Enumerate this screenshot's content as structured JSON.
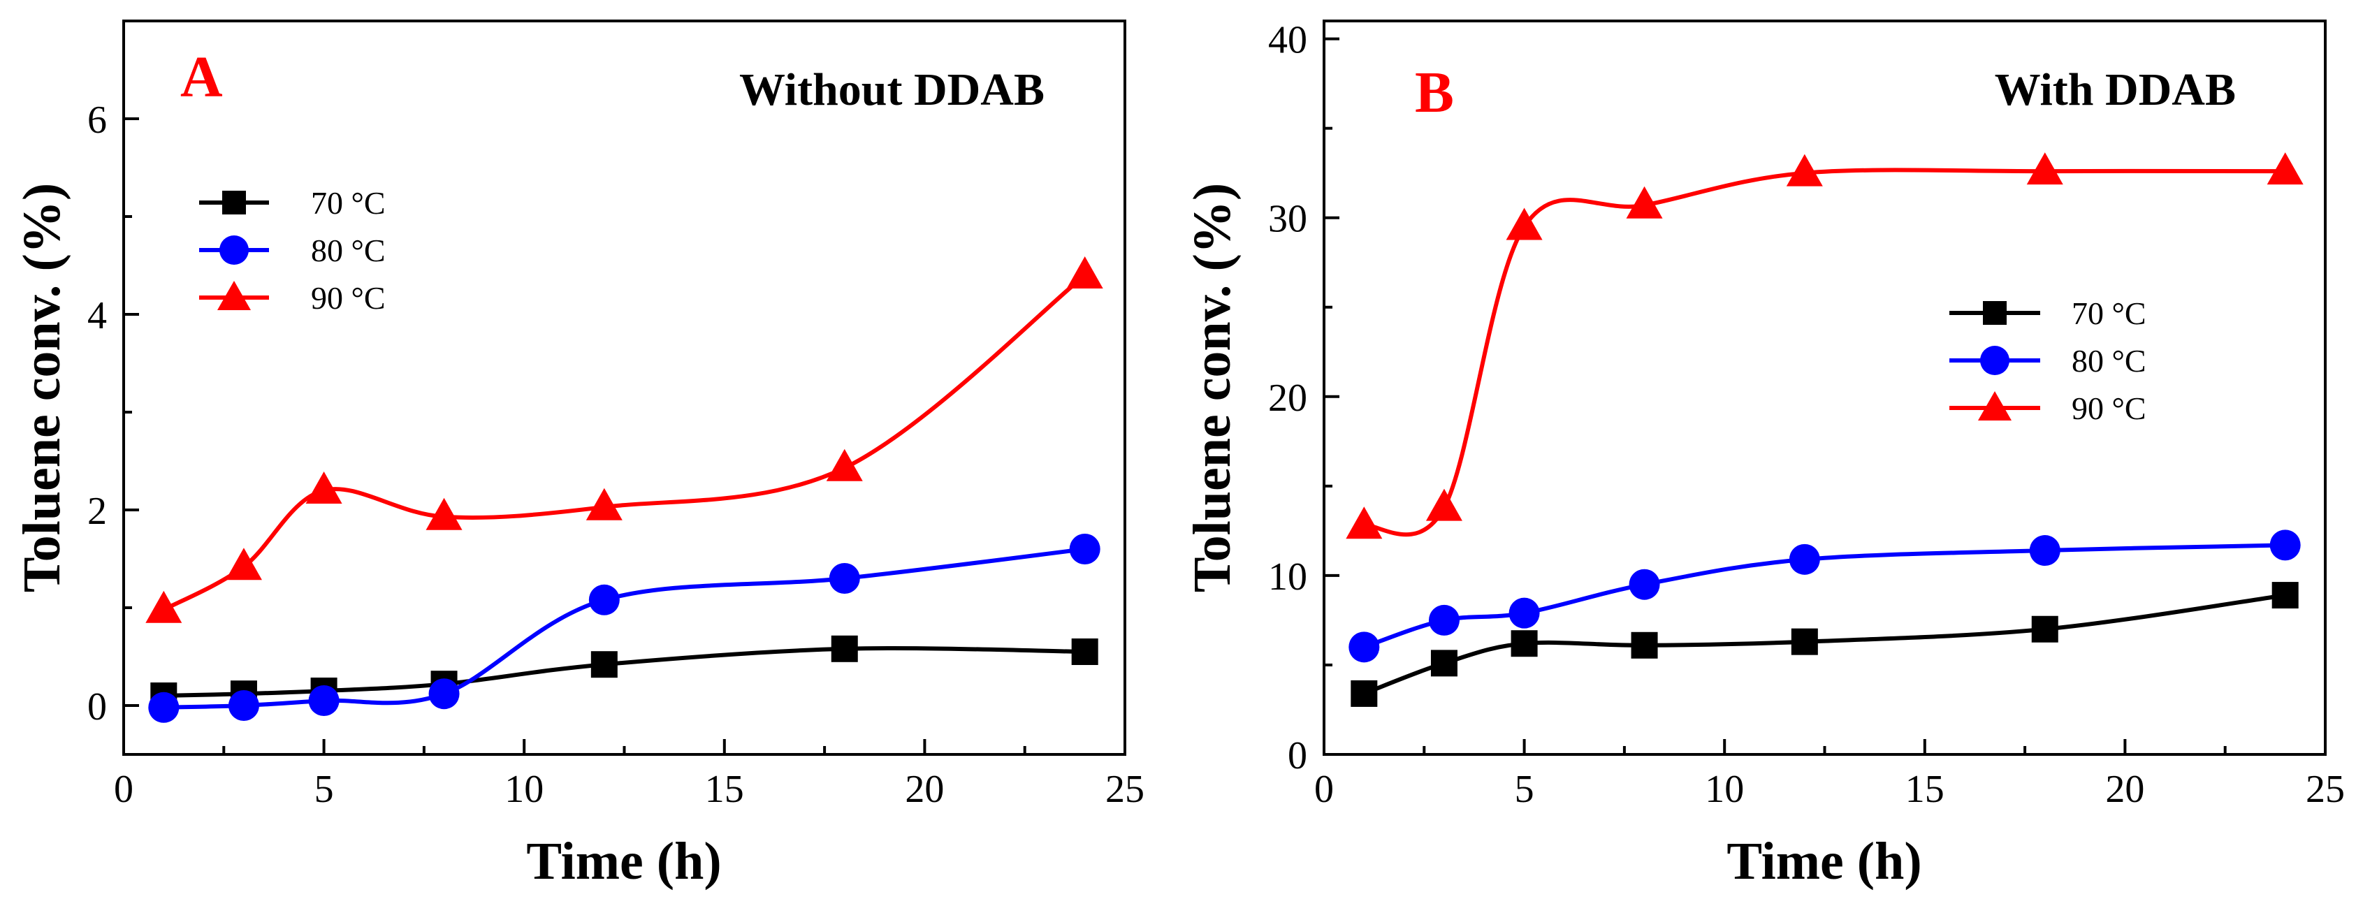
{
  "chart_data": [
    {
      "type": "line",
      "panel": "A",
      "title": "Without DDAB",
      "xlabel": "Time (h)",
      "ylabel": "Toluene conv. (%)",
      "xlim": [
        0,
        25
      ],
      "ylim": [
        -0.5,
        7
      ],
      "xticks": [
        0,
        5,
        10,
        15,
        20,
        25
      ],
      "yticks": [
        0,
        2,
        4,
        6
      ],
      "legend_position": "upper-left",
      "x": [
        1,
        3,
        5,
        8,
        12,
        18,
        24
      ],
      "series": [
        {
          "name": "70 °C",
          "color": "#000000",
          "marker": "square",
          "values": [
            0.1,
            0.12,
            0.15,
            0.22,
            0.42,
            0.58,
            0.55
          ]
        },
        {
          "name": "80 °C",
          "color": "#0000ff",
          "marker": "circle",
          "values": [
            -0.02,
            0.0,
            0.05,
            0.12,
            1.08,
            1.3,
            1.6
          ]
        },
        {
          "name": "90 °C",
          "color": "#ff0000",
          "marker": "triangle",
          "values": [
            0.98,
            1.42,
            2.2,
            1.93,
            2.03,
            2.43,
            4.4
          ]
        }
      ]
    },
    {
      "type": "line",
      "panel": "B",
      "title": "With DDAB",
      "xlabel": "Time (h)",
      "ylabel": "Toluene conv. (%)",
      "xlim": [
        0,
        25
      ],
      "ylim": [
        0,
        41
      ],
      "xticks": [
        0,
        5,
        10,
        15,
        20,
        25
      ],
      "yticks": [
        0,
        10,
        20,
        30,
        40
      ],
      "legend_position": "middle-right",
      "x": [
        1,
        3,
        5,
        8,
        12,
        18,
        24
      ],
      "series": [
        {
          "name": "70 °C",
          "color": "#000000",
          "marker": "square",
          "values": [
            3.4,
            5.1,
            6.2,
            6.1,
            6.3,
            7.0,
            8.9
          ]
        },
        {
          "name": "80 °C",
          "color": "#0000ff",
          "marker": "circle",
          "values": [
            6.0,
            7.5,
            7.9,
            9.5,
            10.9,
            11.4,
            11.7
          ]
        },
        {
          "name": "90 °C",
          "color": "#ff0000",
          "marker": "triangle",
          "values": [
            12.8,
            13.8,
            29.5,
            30.7,
            32.5,
            32.6,
            32.6
          ]
        }
      ]
    }
  ]
}
